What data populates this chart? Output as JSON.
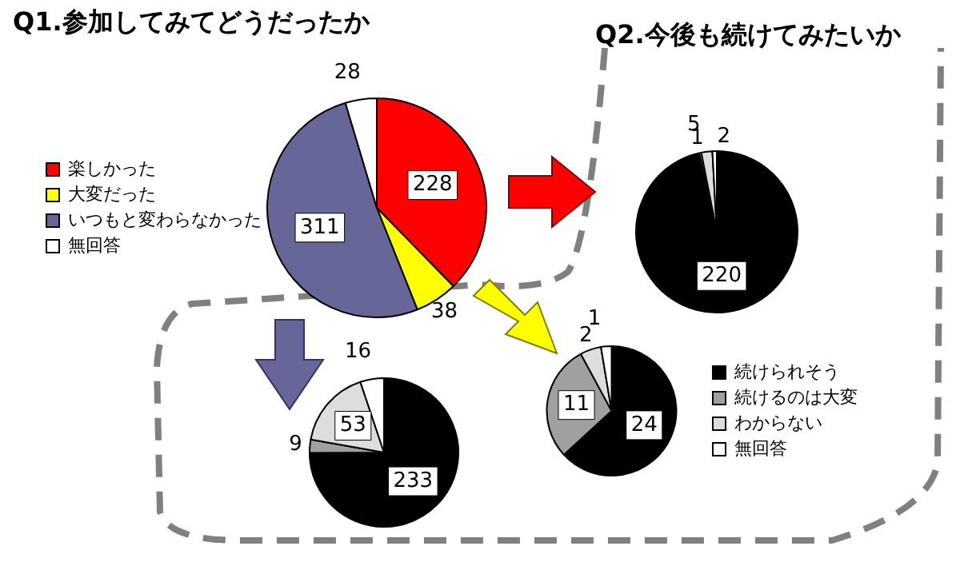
{
  "chart_data": [
    {
      "type": "pie",
      "title": "Q1.参加してみてどうだったか",
      "categories": [
        "楽しかった",
        "大変だった",
        "いつもと変わらなかった",
        "無回答"
      ],
      "values": [
        228,
        38,
        311,
        28
      ],
      "colors": [
        "#ff0000",
        "#ffff00",
        "#666699",
        "#ffffff"
      ],
      "legend": "left",
      "data_labels": true
    },
    {
      "type": "pie",
      "title": "Q2.今後も続けてみたいか",
      "values": [
        220,
        1,
        5,
        2
      ],
      "colors": [
        "#000000",
        "#a0a0a0",
        "#dddddd",
        "#ffffff"
      ],
      "data_labels": true
    },
    {
      "type": "pie",
      "values": [
        233,
        9,
        53,
        16
      ],
      "colors": [
        "#000000",
        "#a0a0a0",
        "#dddddd",
        "#ffffff"
      ],
      "data_labels": true
    },
    {
      "type": "pie",
      "categories": [
        "続けられそう",
        "続けるのは大変",
        "わからない",
        "無回答"
      ],
      "values": [
        24,
        11,
        2,
        1
      ],
      "colors": [
        "#000000",
        "#a0a0a0",
        "#dddddd",
        "#ffffff"
      ],
      "legend": "right",
      "data_labels": true
    }
  ]
}
